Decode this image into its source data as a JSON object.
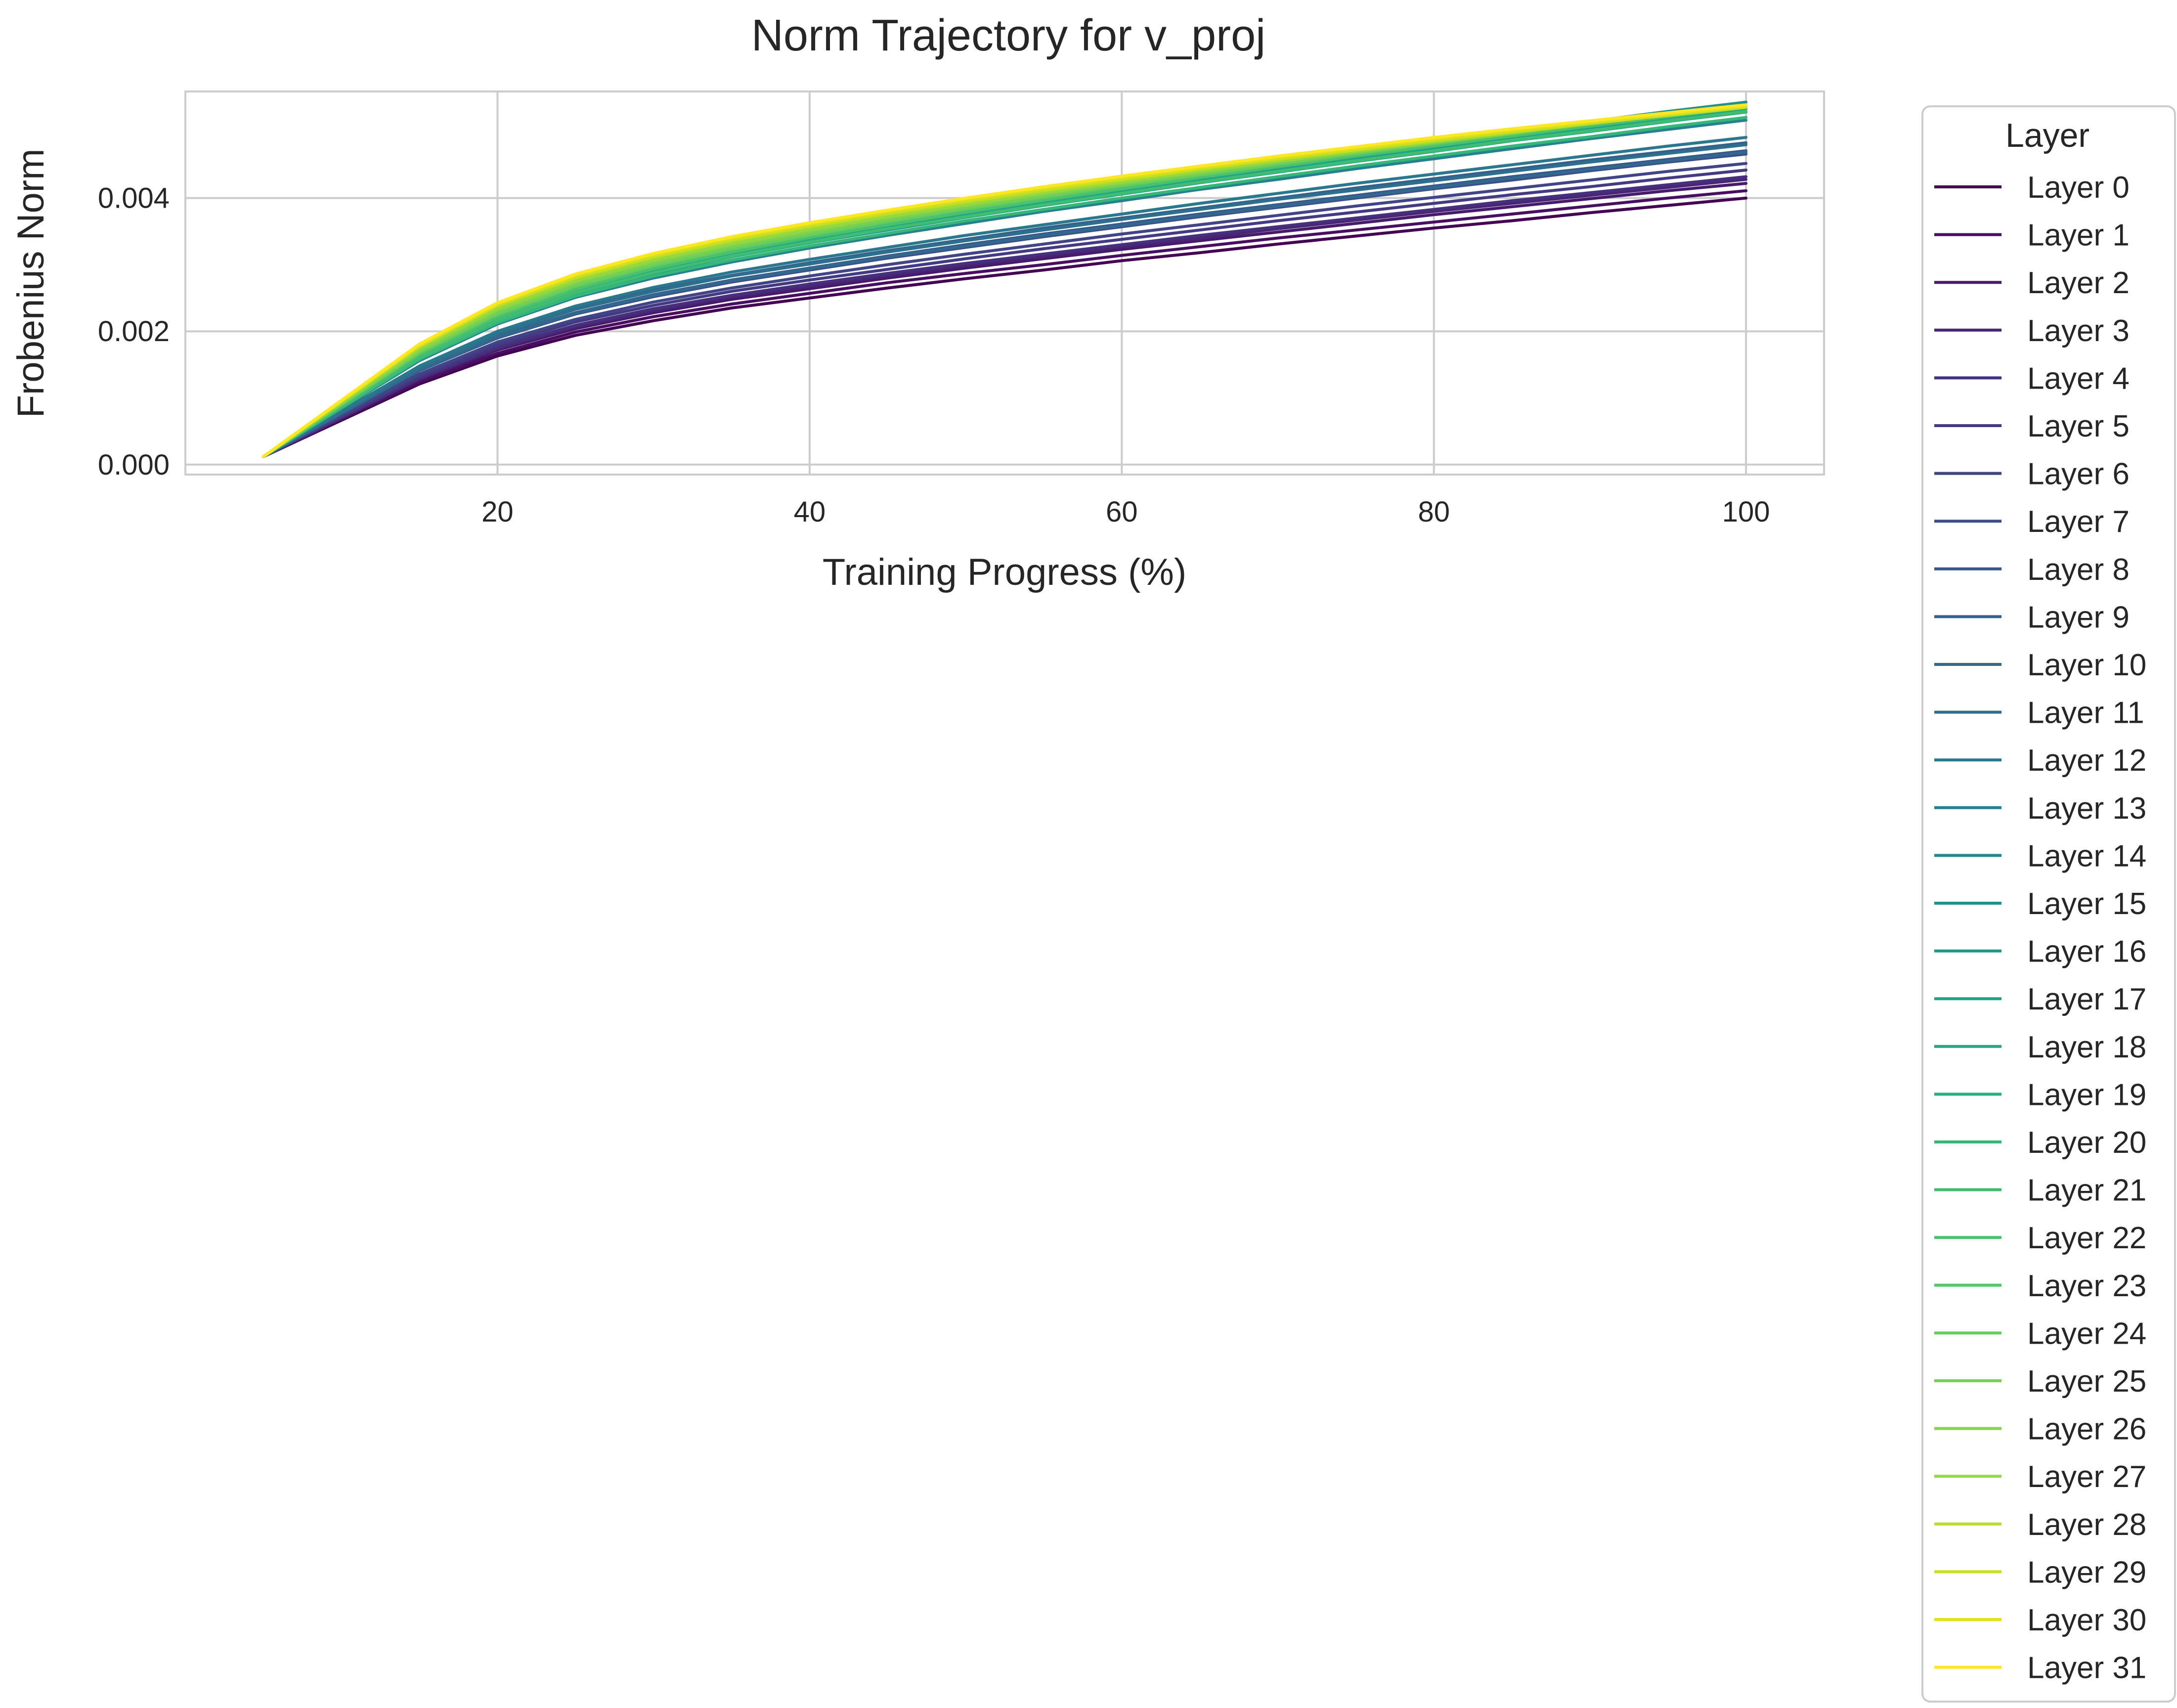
{
  "chart_data": {
    "type": "line",
    "title": "Norm Trajectory for v_proj",
    "xlabel": "Training Progress (%)",
    "ylabel": "Frobenius Norm",
    "xlim": [
      0,
      105
    ],
    "ylim": [
      -0.00015,
      0.0056
    ],
    "xticks": [
      20,
      40,
      60,
      80,
      100
    ],
    "xtick_labels": [
      "20",
      "40",
      "60",
      "80",
      "100"
    ],
    "yticks": [
      0.0,
      0.002,
      0.004
    ],
    "ytick_labels": [
      "0.000",
      "0.002",
      "0.004"
    ],
    "grid": true,
    "legend": {
      "title": "Layer",
      "position": "outside right"
    },
    "x": [
      5,
      15,
      20,
      25,
      30,
      35,
      40,
      45,
      50,
      55,
      60,
      65,
      70,
      75,
      80,
      85,
      90,
      95,
      100
    ],
    "series": [
      {
        "name": "Layer 0",
        "color": "#440154",
        "values": [
          0.00012,
          0.00121,
          0.00163,
          0.00194,
          0.00216,
          0.00235,
          0.0025,
          0.00265,
          0.00279,
          0.00292,
          0.00306,
          0.00318,
          0.00331,
          0.00343,
          0.00355,
          0.00366,
          0.00378,
          0.00389,
          0.004
        ]
      },
      {
        "name": "Layer 1",
        "color": "#470e61",
        "values": [
          0.00012,
          0.00124,
          0.00167,
          0.00199,
          0.00222,
          0.00241,
          0.00257,
          0.00273,
          0.00287,
          0.003,
          0.00314,
          0.00327,
          0.0034,
          0.00352,
          0.00364,
          0.00376,
          0.00388,
          0.004,
          0.00411
        ]
      },
      {
        "name": "Layer 2",
        "color": "#481a6c",
        "values": [
          0.00012,
          0.00127,
          0.00172,
          0.00204,
          0.00228,
          0.00248,
          0.00264,
          0.0028,
          0.00295,
          0.00309,
          0.00323,
          0.00336,
          0.00349,
          0.00362,
          0.00375,
          0.00387,
          0.00399,
          0.00411,
          0.00422
        ]
      },
      {
        "name": "Layer 3",
        "color": "#482576",
        "values": [
          0.00012,
          0.00129,
          0.00174,
          0.00207,
          0.00231,
          0.00252,
          0.00268,
          0.00284,
          0.00299,
          0.00313,
          0.00327,
          0.0034,
          0.00354,
          0.00367,
          0.0038,
          0.00392,
          0.00404,
          0.00416,
          0.00428
        ]
      },
      {
        "name": "Layer 4",
        "color": "#46307e",
        "values": [
          0.00012,
          0.0013,
          0.00176,
          0.00209,
          0.00234,
          0.00254,
          0.00271,
          0.00287,
          0.00302,
          0.00316,
          0.0033,
          0.00344,
          0.00357,
          0.0037,
          0.00383,
          0.00396,
          0.00408,
          0.0042,
          0.00432
        ]
      },
      {
        "name": "Layer 5",
        "color": "#443a83",
        "values": [
          0.00012,
          0.00133,
          0.0018,
          0.00214,
          0.00239,
          0.0026,
          0.00277,
          0.00293,
          0.00309,
          0.00324,
          0.00338,
          0.00352,
          0.00366,
          0.00379,
          0.00392,
          0.00405,
          0.00417,
          0.0043,
          0.00442
        ]
      },
      {
        "name": "Layer 6",
        "color": "#414487",
        "values": [
          0.00012,
          0.00136,
          0.00184,
          0.00218,
          0.00244,
          0.00265,
          0.00283,
          0.003,
          0.00316,
          0.00331,
          0.00346,
          0.0036,
          0.00374,
          0.00388,
          0.00401,
          0.00414,
          0.00427,
          0.0044,
          0.00452
        ]
      },
      {
        "name": "Layer 7",
        "color": "#3d4d8a",
        "values": [
          0.00012,
          0.00141,
          0.0019,
          0.00226,
          0.00252,
          0.00274,
          0.00292,
          0.0031,
          0.00326,
          0.00342,
          0.00357,
          0.00372,
          0.00386,
          0.004,
          0.00414,
          0.00427,
          0.00441,
          0.00454,
          0.00466
        ]
      },
      {
        "name": "Layer 8",
        "color": "#39568c",
        "values": [
          0.00012,
          0.00142,
          0.00192,
          0.00228,
          0.00255,
          0.00277,
          0.00295,
          0.00313,
          0.0033,
          0.00346,
          0.00361,
          0.00376,
          0.0039,
          0.00404,
          0.00418,
          0.00432,
          0.00445,
          0.00458,
          0.00471
        ]
      },
      {
        "name": "Layer 9",
        "color": "#355f8d",
        "values": [
          0.00012,
          0.00146,
          0.00197,
          0.00234,
          0.00262,
          0.00284,
          0.00303,
          0.00321,
          0.00338,
          0.00355,
          0.0037,
          0.00385,
          0.004,
          0.00415,
          0.00429,
          0.00443,
          0.00457,
          0.0047,
          0.00483
        ]
      },
      {
        "name": "Layer 10",
        "color": "#31688e",
        "values": [
          0.00012,
          0.00142,
          0.00191,
          0.00227,
          0.00254,
          0.00276,
          0.00294,
          0.00312,
          0.00328,
          0.00344,
          0.00359,
          0.00374,
          0.00388,
          0.00402,
          0.00416,
          0.0043,
          0.00443,
          0.00456,
          0.00469
        ]
      },
      {
        "name": "Layer 11",
        "color": "#2d708e",
        "values": [
          0.00012,
          0.00145,
          0.00196,
          0.00233,
          0.0026,
          0.00283,
          0.00301,
          0.00319,
          0.00336,
          0.00352,
          0.00368,
          0.00383,
          0.00398,
          0.00412,
          0.00426,
          0.0044,
          0.00454,
          0.00467,
          0.0048
        ]
      },
      {
        "name": "Layer 12",
        "color": "#2a788e",
        "values": [
          0.00012,
          0.00148,
          0.002,
          0.00238,
          0.00266,
          0.00289,
          0.00308,
          0.00326,
          0.00344,
          0.0036,
          0.00376,
          0.00392,
          0.00407,
          0.00422,
          0.00436,
          0.0045,
          0.00464,
          0.00478,
          0.00491
        ]
      },
      {
        "name": "Layer 13",
        "color": "#26818e",
        "values": [
          0.00012,
          0.00156,
          0.00211,
          0.00251,
          0.0028,
          0.00304,
          0.00325,
          0.00344,
          0.00362,
          0.0038,
          0.00396,
          0.00413,
          0.00428,
          0.00444,
          0.00459,
          0.00474,
          0.00489,
          0.00503,
          0.00517
        ]
      },
      {
        "name": "Layer 14",
        "color": "#23898e",
        "values": [
          0.00012,
          0.0016,
          0.00216,
          0.00257,
          0.00287,
          0.00312,
          0.00333,
          0.00352,
          0.00371,
          0.00389,
          0.00406,
          0.00423,
          0.00439,
          0.00455,
          0.0047,
          0.00486,
          0.005,
          0.00515,
          0.0053
        ]
      },
      {
        "name": "Layer 15",
        "color": "#21918c",
        "values": [
          0.00012,
          0.00165,
          0.00222,
          0.00264,
          0.00295,
          0.0032,
          0.00342,
          0.00362,
          0.00381,
          0.004,
          0.00417,
          0.00434,
          0.00451,
          0.00467,
          0.00483,
          0.00499,
          0.00515,
          0.0053,
          0.00544
        ]
      },
      {
        "name": "Layer 16",
        "color": "#1f998a",
        "values": [
          0.00012,
          0.00163,
          0.00219,
          0.0026,
          0.00291,
          0.00316,
          0.00337,
          0.00357,
          0.00376,
          0.00394,
          0.00411,
          0.00428,
          0.00445,
          0.00461,
          0.00477,
          0.00492,
          0.00507,
          0.00522,
          0.00537
        ]
      },
      {
        "name": "Layer 17",
        "color": "#20a386",
        "values": [
          0.00012,
          0.00162,
          0.00218,
          0.00259,
          0.0029,
          0.00315,
          0.00336,
          0.00356,
          0.00374,
          0.00393,
          0.0041,
          0.00426,
          0.00443,
          0.00459,
          0.00474,
          0.0049,
          0.00505,
          0.0052,
          0.00534
        ]
      },
      {
        "name": "Layer 18",
        "color": "#22a884",
        "values": [
          0.00012,
          0.0016,
          0.00216,
          0.00257,
          0.00288,
          0.00312,
          0.00333,
          0.00353,
          0.00371,
          0.00389,
          0.00406,
          0.00423,
          0.00439,
          0.00455,
          0.0047,
          0.00486,
          0.005,
          0.00515,
          0.00529
        ]
      },
      {
        "name": "Layer 19",
        "color": "#29af7f",
        "values": [
          0.00012,
          0.00164,
          0.0022,
          0.00262,
          0.00293,
          0.00318,
          0.00339,
          0.00359,
          0.00378,
          0.00396,
          0.00413,
          0.0043,
          0.00447,
          0.00463,
          0.00479,
          0.00494,
          0.00509,
          0.00524,
          0.00538
        ]
      },
      {
        "name": "Layer 20",
        "color": "#35b779",
        "values": [
          0.00012,
          0.00158,
          0.00213,
          0.00253,
          0.00283,
          0.00307,
          0.00328,
          0.00347,
          0.00366,
          0.00383,
          0.004,
          0.00416,
          0.00432,
          0.00448,
          0.00463,
          0.00478,
          0.00492,
          0.00507,
          0.00521
        ]
      },
      {
        "name": "Layer 21",
        "color": "#40bd72",
        "values": [
          0.00012,
          0.00161,
          0.00217,
          0.00258,
          0.00288,
          0.00313,
          0.00334,
          0.00354,
          0.00372,
          0.0039,
          0.00407,
          0.00424,
          0.0044,
          0.00456,
          0.00471,
          0.00487,
          0.00501,
          0.00516,
          0.0053
        ]
      },
      {
        "name": "Layer 22",
        "color": "#4ac16d",
        "values": [
          0.00012,
          0.00165,
          0.00222,
          0.00263,
          0.00294,
          0.00319,
          0.00341,
          0.0036,
          0.00379,
          0.00397,
          0.00414,
          0.00431,
          0.00447,
          0.00463,
          0.00478,
          0.00493,
          0.00508,
          0.00522,
          0.00536
        ]
      },
      {
        "name": "Layer 23",
        "color": "#56c667",
        "values": [
          0.00012,
          0.00167,
          0.00225,
          0.00267,
          0.00298,
          0.00323,
          0.00344,
          0.00364,
          0.00383,
          0.004,
          0.00418,
          0.00434,
          0.0045,
          0.00466,
          0.00481,
          0.00496,
          0.00511,
          0.00525,
          0.00539
        ]
      },
      {
        "name": "Layer 24",
        "color": "#69cd5b",
        "values": [
          0.00012,
          0.00168,
          0.00226,
          0.00268,
          0.00299,
          0.00324,
          0.00345,
          0.00365,
          0.00384,
          0.00402,
          0.00419,
          0.00435,
          0.00451,
          0.00467,
          0.00482,
          0.00497,
          0.00511,
          0.00525,
          0.00539
        ]
      },
      {
        "name": "Layer 25",
        "color": "#75d054",
        "values": [
          0.00012,
          0.0017,
          0.00229,
          0.00271,
          0.00302,
          0.00327,
          0.00348,
          0.00368,
          0.00386,
          0.00404,
          0.00421,
          0.00437,
          0.00453,
          0.00468,
          0.00483,
          0.00497,
          0.00511,
          0.00525,
          0.00539
        ]
      },
      {
        "name": "Layer 26",
        "color": "#86d549",
        "values": [
          0.00012,
          0.00172,
          0.00232,
          0.00274,
          0.00305,
          0.0033,
          0.00351,
          0.00371,
          0.00389,
          0.00407,
          0.00423,
          0.00439,
          0.00455,
          0.0047,
          0.00484,
          0.00498,
          0.00512,
          0.00526,
          0.00539
        ]
      },
      {
        "name": "Layer 27",
        "color": "#95d840",
        "values": [
          0.00012,
          0.00174,
          0.00234,
          0.00276,
          0.00307,
          0.00332,
          0.00353,
          0.00372,
          0.0039,
          0.00408,
          0.00424,
          0.0044,
          0.00455,
          0.0047,
          0.00484,
          0.00498,
          0.00512,
          0.00525,
          0.00538
        ]
      },
      {
        "name": "Layer 28",
        "color": "#b8de29",
        "values": [
          0.00012,
          0.00177,
          0.00238,
          0.0028,
          0.00311,
          0.00336,
          0.00357,
          0.00376,
          0.00394,
          0.00411,
          0.00427,
          0.00443,
          0.00458,
          0.00472,
          0.00486,
          0.00499,
          0.00512,
          0.00524,
          0.00536
        ]
      },
      {
        "name": "Layer 29",
        "color": "#c8e020",
        "values": [
          0.00012,
          0.00178,
          0.0024,
          0.00282,
          0.00313,
          0.00338,
          0.00359,
          0.00378,
          0.00396,
          0.00413,
          0.00429,
          0.00444,
          0.00459,
          0.00473,
          0.00487,
          0.005,
          0.00513,
          0.00525,
          0.00537
        ]
      },
      {
        "name": "Layer 30",
        "color": "#dde318",
        "values": [
          0.00012,
          0.00179,
          0.00241,
          0.00284,
          0.00315,
          0.0034,
          0.00361,
          0.0038,
          0.00398,
          0.00415,
          0.00431,
          0.00446,
          0.00461,
          0.00475,
          0.00489,
          0.00502,
          0.00514,
          0.00526,
          0.00538
        ]
      },
      {
        "name": "Layer 31",
        "color": "#fde725",
        "values": [
          0.00012,
          0.00181,
          0.00243,
          0.00286,
          0.00317,
          0.00342,
          0.00363,
          0.00382,
          0.004,
          0.00417,
          0.00433,
          0.00448,
          0.00463,
          0.00477,
          0.00491,
          0.00504,
          0.00516,
          0.00528,
          0.0054
        ]
      }
    ]
  }
}
